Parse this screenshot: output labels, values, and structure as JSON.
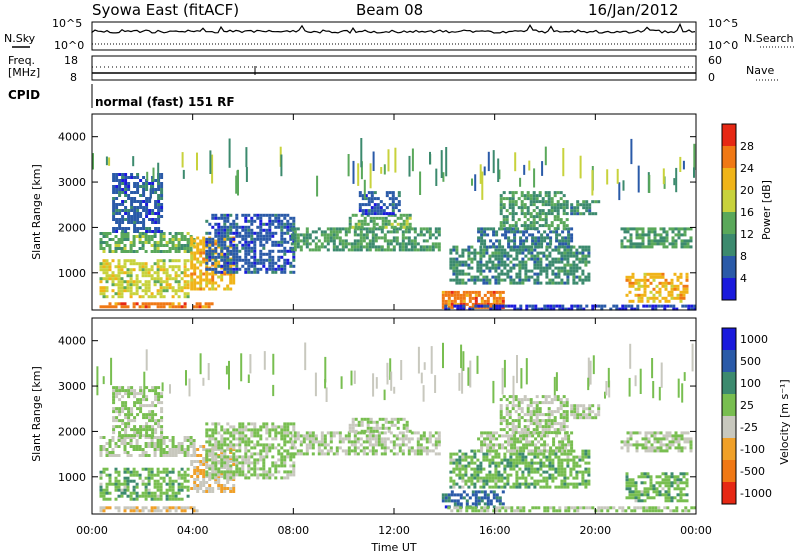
{
  "header": {
    "station": "Syowa East (fitACF)",
    "beam": "Beam 08",
    "date": "16/Jan/2012"
  },
  "noise_panel": {
    "left_label": "N.Sky",
    "right_label": "N.Search",
    "left_ticks": [
      "10^5",
      "10^0"
    ],
    "right_ticks": [
      "10^5",
      "10^0"
    ]
  },
  "freq_panel": {
    "left_label_line1": "Freq.",
    "left_label_line2": "[MHz]",
    "right_label": "Nave",
    "left_ticks": [
      "18",
      "8"
    ],
    "right_ticks": [
      "60",
      "0"
    ]
  },
  "cpid": {
    "label": "CPID",
    "value": "normal (fast) 151 RF"
  },
  "x_axis": {
    "label": "Time UT",
    "ticks": [
      "00:00",
      "04:00",
      "08:00",
      "12:00",
      "16:00",
      "20:00",
      "00:00"
    ]
  },
  "colors": {
    "power": [
      "#1a1adc",
      "#2a5aa8",
      "#3c8a6e",
      "#5aa85a",
      "#c8d23c",
      "#f0b418",
      "#f07814",
      "#e62814"
    ],
    "velocity": [
      "#1a1adc",
      "#2a5aa8",
      "#3c8a6e",
      "#78be50",
      "#c8c8be",
      "#f0a028",
      "#f07814",
      "#e62814"
    ]
  },
  "chart_data": [
    {
      "type": "heatmap",
      "title": "",
      "ylabel": "Slant Range [km]",
      "xlabel": "",
      "x_ticks": [
        "00:00",
        "04:00",
        "08:00",
        "12:00",
        "16:00",
        "20:00",
        "00:00"
      ],
      "y_ticks": [
        "1000",
        "2000",
        "3000",
        "4000"
      ],
      "ylim": [
        180,
        4500
      ],
      "colorbar": {
        "label": "Power [dB]",
        "ticks": [
          "4",
          "8",
          "12",
          "16",
          "20",
          "24",
          "28"
        ],
        "range": [
          0,
          32
        ]
      },
      "regions": [
        {
          "t0": 0.3,
          "t1": 4.8,
          "r0": 250,
          "r1": 350,
          "value": 26
        },
        {
          "t0": 0.3,
          "t1": 3.8,
          "r0": 500,
          "r1": 1300,
          "value": 18
        },
        {
          "t0": 0.3,
          "t1": 4.0,
          "r0": 1500,
          "r1": 1900,
          "value": 14
        },
        {
          "t0": 3.9,
          "t1": 5.6,
          "r0": 650,
          "r1": 1800,
          "value": 22
        },
        {
          "t0": 0.8,
          "t1": 2.8,
          "r0": 1900,
          "r1": 3200,
          "value": 6
        },
        {
          "t0": 4.5,
          "t1": 8.0,
          "r0": 1000,
          "r1": 2300,
          "value": 6
        },
        {
          "t0": 7.9,
          "t1": 13.8,
          "r0": 1500,
          "r1": 2000,
          "value": 12
        },
        {
          "t0": 10.2,
          "t1": 12.7,
          "r0": 2000,
          "r1": 2300,
          "value": 14
        },
        {
          "t0": 10.6,
          "t1": 12.2,
          "r0": 2300,
          "r1": 2800,
          "value": 6
        },
        {
          "t0": 13.9,
          "t1": 16.4,
          "r0": 250,
          "r1": 600,
          "value": 26
        },
        {
          "t0": 14.2,
          "t1": 19.8,
          "r0": 800,
          "r1": 1600,
          "value": 10
        },
        {
          "t0": 15.3,
          "t1": 19.0,
          "r0": 1600,
          "r1": 2000,
          "value": 8
        },
        {
          "t0": 16.2,
          "t1": 18.9,
          "r0": 2000,
          "r1": 2800,
          "value": 12
        },
        {
          "t0": 19.0,
          "t1": 20.1,
          "r0": 2300,
          "r1": 2600,
          "value": 10
        },
        {
          "t0": 21.0,
          "t1": 23.8,
          "r0": 1600,
          "r1": 2000,
          "value": 12
        },
        {
          "t0": 21.2,
          "t1": 23.7,
          "r0": 400,
          "r1": 1000,
          "value": 22
        },
        {
          "t0": 14.0,
          "t1": 23.9,
          "r0": 200,
          "r1": 300,
          "value": 4
        }
      ]
    },
    {
      "type": "heatmap",
      "title": "",
      "ylabel": "Slant Range [km]",
      "xlabel": "Time UT",
      "x_ticks": [
        "00:00",
        "04:00",
        "08:00",
        "12:00",
        "16:00",
        "20:00",
        "00:00"
      ],
      "y_ticks": [
        "1000",
        "2000",
        "3000",
        "4000"
      ],
      "ylim": [
        180,
        4500
      ],
      "colorbar": {
        "label": "Velocity [m s⁻¹]",
        "ticks": [
          "1000",
          "500",
          "100",
          "25",
          "-25",
          "-100",
          "-500",
          "-1000"
        ],
        "range": [
          -1200,
          1200
        ]
      },
      "regions": [
        {
          "t0": 0.3,
          "t1": 4.2,
          "r0": 250,
          "r1": 350,
          "value": -250
        },
        {
          "t0": 0.3,
          "t1": 3.8,
          "r0": 500,
          "r1": 1200,
          "value": 200
        },
        {
          "t0": 0.3,
          "t1": 4.0,
          "r0": 1500,
          "r1": 1900,
          "value": 0
        },
        {
          "t0": 3.9,
          "t1": 5.6,
          "r0": 700,
          "r1": 1700,
          "value": -250
        },
        {
          "t0": 0.8,
          "t1": 2.8,
          "r0": 1900,
          "r1": 3000,
          "value": 60
        },
        {
          "t0": 4.5,
          "t1": 8.0,
          "r0": 1000,
          "r1": 2200,
          "value": 60
        },
        {
          "t0": 7.9,
          "t1": 13.8,
          "r0": 1500,
          "r1": 2000,
          "value": 0
        },
        {
          "t0": 10.2,
          "t1": 12.7,
          "r0": 2000,
          "r1": 2300,
          "value": 0
        },
        {
          "t0": 13.9,
          "t1": 16.4,
          "r0": 350,
          "r1": 700,
          "value": 700
        },
        {
          "t0": 14.2,
          "t1": 19.8,
          "r0": 800,
          "r1": 1600,
          "value": 200
        },
        {
          "t0": 15.3,
          "t1": 19.0,
          "r0": 1600,
          "r1": 2000,
          "value": 60
        },
        {
          "t0": 16.2,
          "t1": 18.9,
          "r0": 2000,
          "r1": 2800,
          "value": 0
        },
        {
          "t0": 19.0,
          "t1": 20.1,
          "r0": 2300,
          "r1": 2600,
          "value": 0
        },
        {
          "t0": 21.0,
          "t1": 23.8,
          "r0": 1600,
          "r1": 2000,
          "value": 0
        },
        {
          "t0": 21.2,
          "t1": 23.7,
          "r0": 500,
          "r1": 1100,
          "value": 200
        },
        {
          "t0": 14.0,
          "t1": 23.9,
          "r0": 250,
          "r1": 350,
          "value": 60
        }
      ]
    }
  ]
}
